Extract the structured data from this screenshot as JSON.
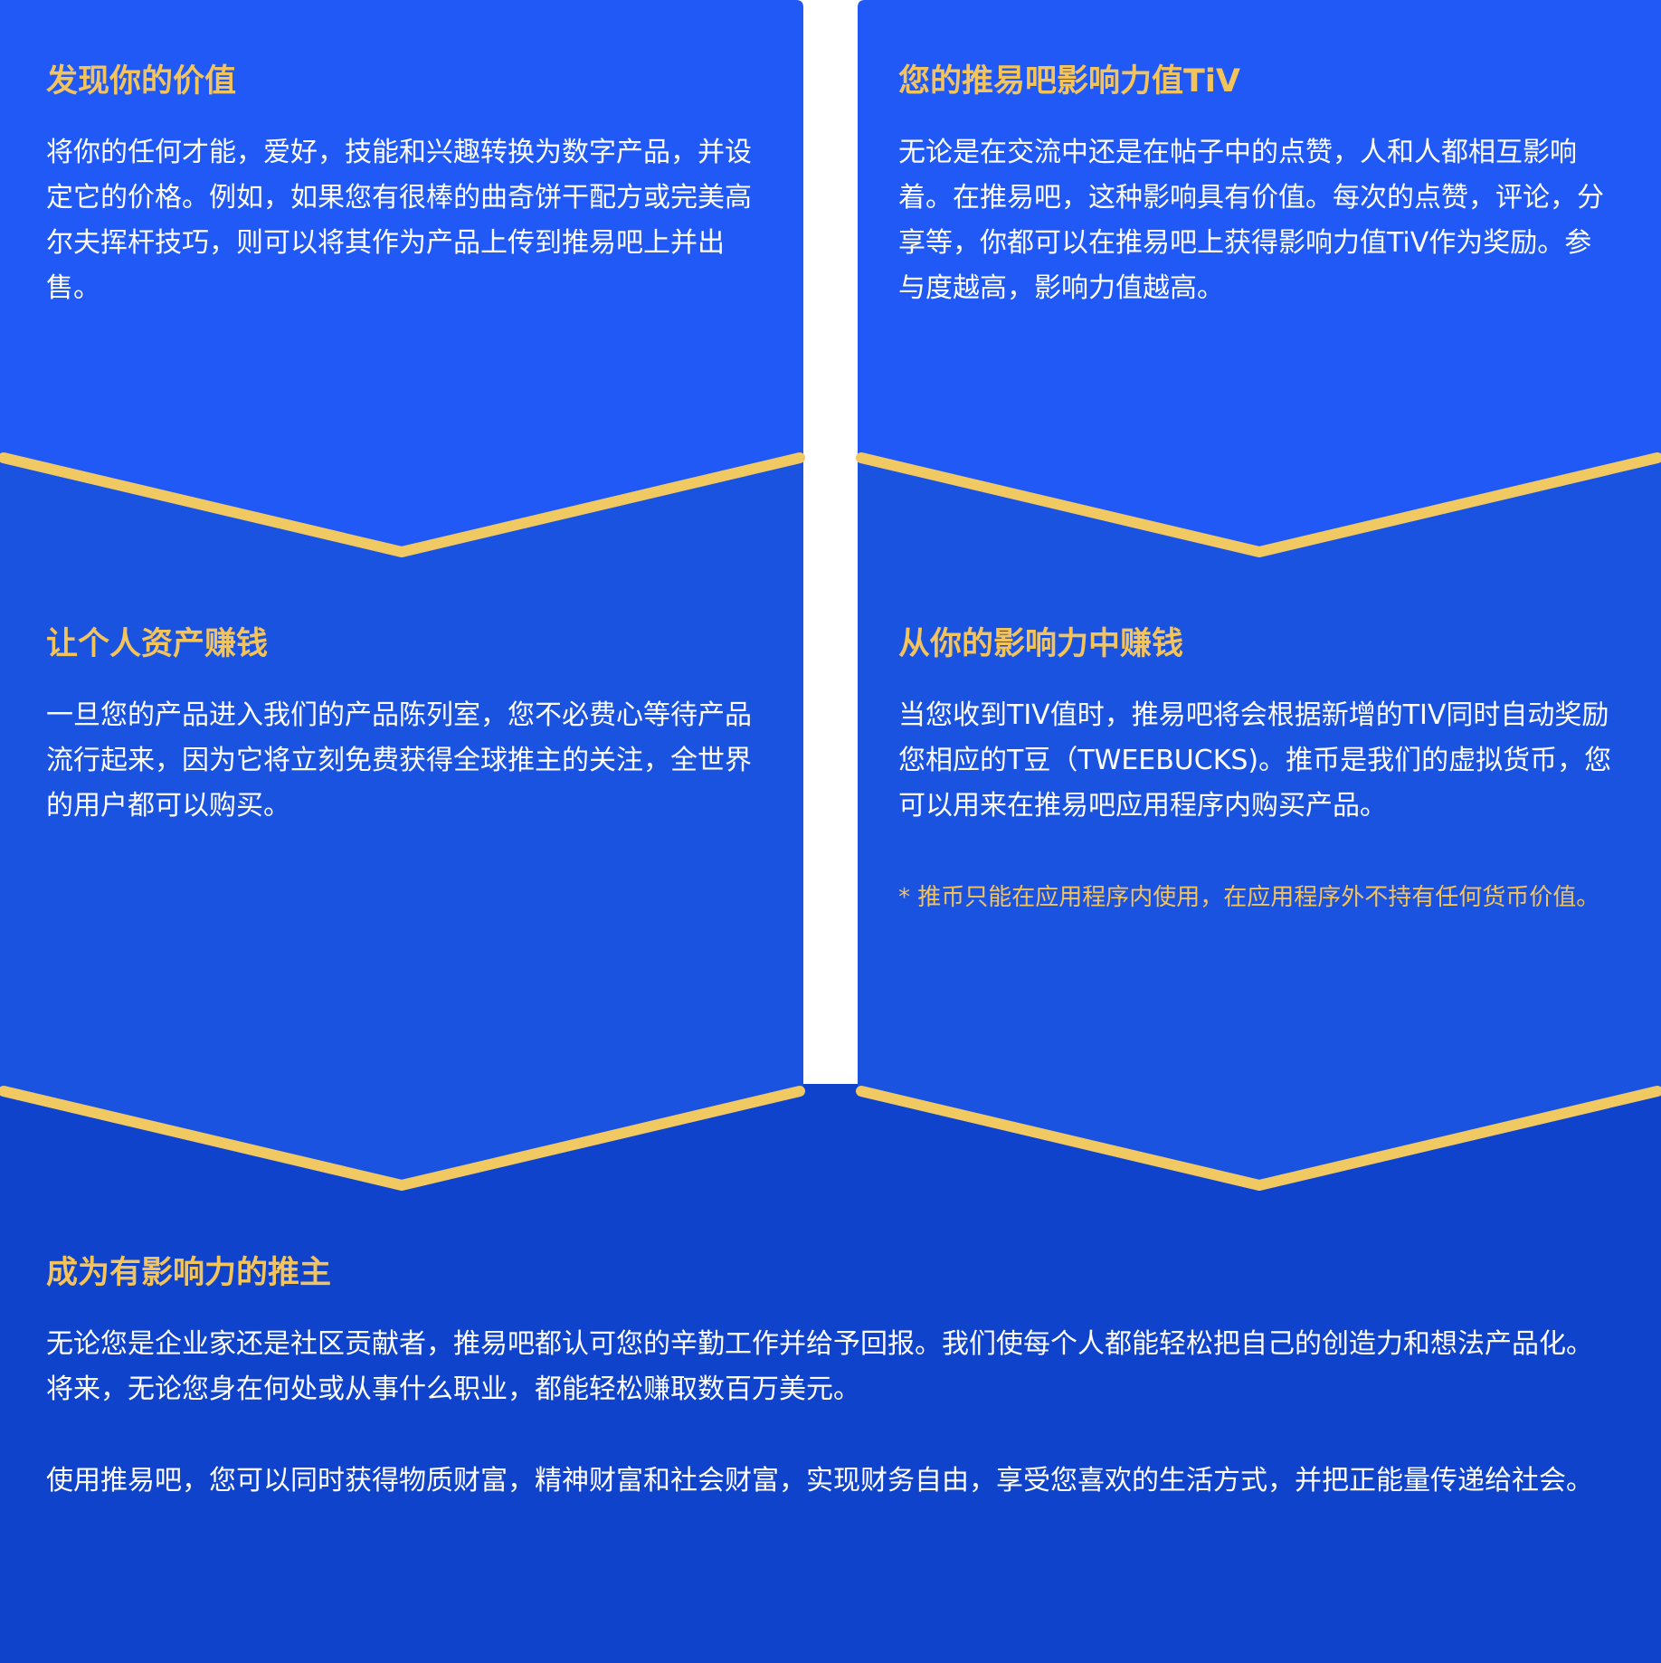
{
  "colors": {
    "panel_top": "#2059f6",
    "panel_mid": "#1b53e1",
    "panel_bottom": "#0f43cb",
    "chevron": "#f1c963",
    "title": "#f3c35c",
    "text": "#ffffff"
  },
  "sections": {
    "discover": {
      "title": "发现你的价值",
      "body": "将你的任何才能，爱好，技能和兴趣转换为数字产品，并设定它的价格。例如，如果您有很棒的曲奇饼干配方或完美高尔夫挥杆技巧，则可以将其作为产品上传到推易吧上并出售。"
    },
    "influence_value": {
      "title": "您的推易吧影响力值TiV",
      "body": "无论是在交流中还是在帖子中的点赞，人和人都相互影响着。在推易吧，这种影响具有价值。每次的点赞，评论，分享等，你都可以在推易吧上获得影响力值TiV作为奖励。参与度越高，影响力值越高。"
    },
    "assets": {
      "title": "让个人资产赚钱",
      "body": "一旦您的产品进入我们的产品陈列室，您不必费心等待产品流行起来，因为它将立刻免费获得全球推主的关注，全世界的用户都可以购买。"
    },
    "earn_influence": {
      "title": "从你的影响力中赚钱",
      "body": "当您收到TIV值时，推易吧将会根据新增的TIV同时自动奖励您相应的T豆（TWEEBUCKS)。推币是我们的虚拟货币，您可以用来在推易吧应用程序内购买产品。",
      "note": "* 推币只能在应用程序内使用，在应用程序外不持有任何货币价值。"
    },
    "influencer": {
      "title": "成为有影响力的推主",
      "paragraph1": "无论您是企业家还是社区贡献者，推易吧都认可您的辛勤工作并给予回报。我们使每个人都能轻松把自己的创造力和想法产品化。将来，无论您身在何处或从事什么职业，都能轻松赚取数百万美元。",
      "paragraph2": "使用推易吧，您可以同时获得物质财富，精神财富和社会财富，实现财务自由，享受您喜欢的生活方式，并把正能量传递给社会。"
    }
  }
}
